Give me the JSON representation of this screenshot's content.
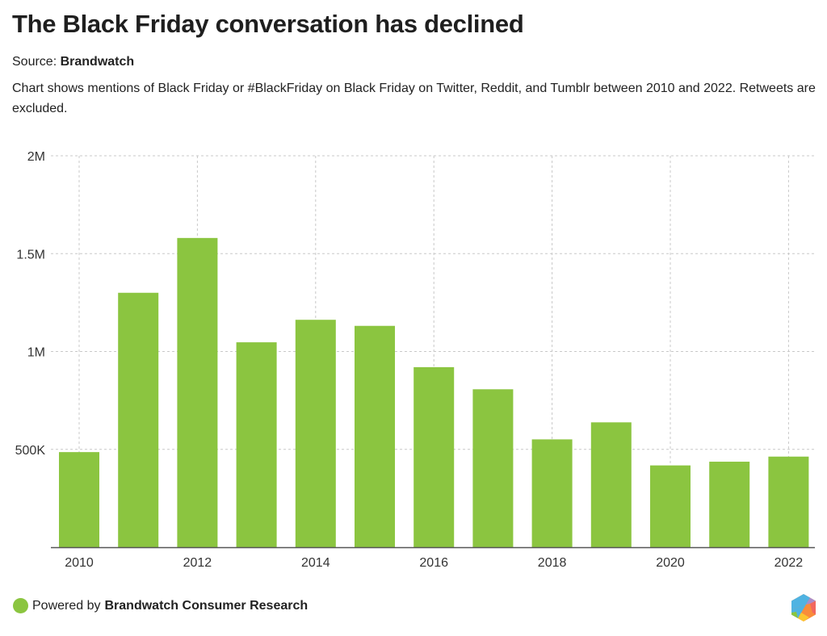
{
  "header": {
    "title": "The Black Friday conversation has declined",
    "source_label": "Source:",
    "source_name": "Brandwatch",
    "description": "Chart shows mentions of Black Friday or #BlackFriday on Black Friday on Twitter, Reddit, and Tumblr between 2010 and 2022. Retweets are excluded."
  },
  "footer": {
    "powered_by": "Powered by",
    "brand": "Brandwatch Consumer Research",
    "dot_icon": "green-circle-icon",
    "logo_icon": "brandwatch-hexagon-logo-icon"
  },
  "colors": {
    "bar": "#8BC540",
    "grid": "#c8c8c8",
    "axis": "#555555",
    "text": "#222222"
  },
  "chart_data": {
    "type": "bar",
    "title": "The Black Friday conversation has declined",
    "xlabel": "",
    "ylabel": "",
    "categories": [
      "2010",
      "2011",
      "2012",
      "2013",
      "2014",
      "2015",
      "2016",
      "2017",
      "2018",
      "2019",
      "2020",
      "2021",
      "2022"
    ],
    "values": [
      486000,
      1300000,
      1580000,
      1047000,
      1162000,
      1131000,
      920000,
      807000,
      551000,
      638000,
      418000,
      437000,
      463000
    ],
    "ylim": [
      0,
      2000000
    ],
    "yticks": [
      500000,
      1000000,
      1500000,
      2000000
    ],
    "ytick_labels": [
      "500K",
      "1M",
      "1.5M",
      "2M"
    ],
    "xtick_labels": [
      "2010",
      "2012",
      "2014",
      "2016",
      "2018",
      "2020",
      "2022"
    ],
    "grid": true,
    "legend": "none"
  }
}
